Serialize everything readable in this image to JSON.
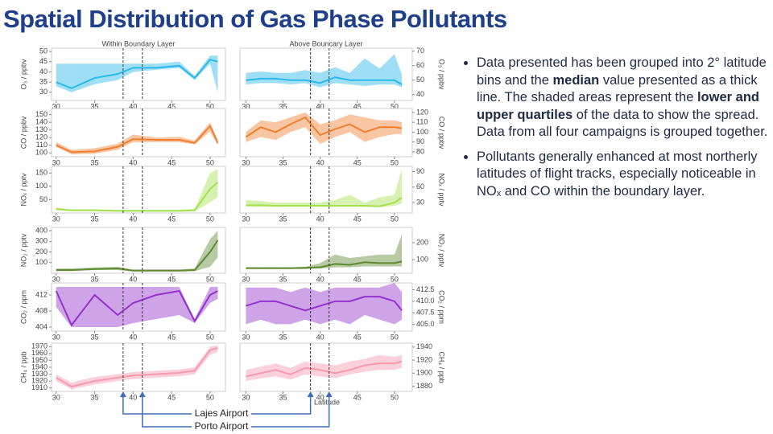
{
  "title": "Spatial Distribution of Gas Phase Pollutants",
  "bullets": [
    [
      "Data presented has been grouped into 2° latitude bins and the ",
      "median",
      " value presented as a thick line. The shaded areas represent the ",
      "lower and upper quartiles",
      " of the data to show the spread. Data from all four campaigns is grouped together."
    ],
    [
      "Pollutants generally enhanced at most northerly latitudes of flight tracks, especially noticeable in NOₓ and CO within the boundary layer."
    ]
  ],
  "column_titles": [
    "Within Boundary Layer",
    "Above Bouncary Layer"
  ],
  "x_label": "Latitude",
  "airports": [
    {
      "name": "Lajes Airport",
      "latitude": 38.7
    },
    {
      "name": "Porto Airport",
      "latitude": 41.2
    }
  ],
  "chart_data": [
    {
      "type": "band",
      "y_label": "O₃ / ppbv",
      "color": "#2bb8ea",
      "x": [
        30,
        32,
        35,
        38,
        40,
        43,
        46,
        48,
        50,
        51
      ],
      "xlim": [
        29.4,
        52
      ],
      "xticks": [
        30,
        35,
        40,
        45,
        50
      ],
      "ylim": [
        26,
        51.6
      ],
      "yticks": [
        30,
        35,
        40,
        45,
        50
      ],
      "values": [
        35,
        32,
        37,
        39,
        42,
        42,
        43,
        37,
        46,
        45
      ],
      "lower": [
        33,
        30,
        34,
        36,
        40,
        41,
        42,
        36,
        44,
        30
      ],
      "upper": [
        44,
        44,
        44,
        44,
        44,
        44,
        45,
        38,
        48,
        48
      ]
    },
    {
      "type": "band",
      "y_label": "CO / ppbv",
      "color": "#ef8032",
      "x": [
        30,
        32,
        35,
        38,
        40,
        43,
        46,
        48,
        50,
        51
      ],
      "xlim": [
        29.4,
        52
      ],
      "xticks": [
        30,
        35,
        40,
        45,
        50
      ],
      "ylim": [
        95,
        158
      ],
      "yticks": [
        100,
        110,
        120,
        130,
        140,
        150
      ],
      "values": [
        110,
        101,
        102,
        108,
        118,
        117,
        117,
        113,
        135,
        113
      ],
      "lower": [
        108,
        98,
        99,
        104,
        114,
        114,
        114,
        111,
        128,
        110
      ],
      "upper": [
        114,
        104,
        106,
        112,
        124,
        120,
        121,
        116,
        140,
        117
      ]
    },
    {
      "type": "band",
      "y_label": "NOₓ / pptv",
      "color": "#a6e04f",
      "x": [
        30,
        32,
        35,
        38,
        40,
        43,
        46,
        48,
        50,
        51
      ],
      "xlim": [
        29.4,
        52
      ],
      "xticks": [
        30,
        35,
        40,
        45,
        50
      ],
      "ylim": [
        0,
        175
      ],
      "yticks": [
        50,
        100,
        150
      ],
      "values": [
        15,
        10,
        10,
        8,
        8,
        8,
        8,
        10,
        90,
        115
      ],
      "lower": [
        10,
        7,
        7,
        5,
        5,
        5,
        5,
        6,
        40,
        60
      ],
      "upper": [
        20,
        14,
        13,
        12,
        12,
        12,
        12,
        15,
        150,
        165
      ]
    },
    {
      "type": "band",
      "y_label": "NO₂ / pptv",
      "color": "#5f8a32",
      "x": [
        30,
        32,
        35,
        38,
        40,
        43,
        46,
        48,
        50,
        51
      ],
      "xlim": [
        29.4,
        52
      ],
      "xticks": [
        30,
        35,
        40,
        45,
        50
      ],
      "ylim": [
        0,
        430
      ],
      "yticks": [
        100,
        200,
        300,
        400
      ],
      "values": [
        30,
        30,
        40,
        45,
        25,
        25,
        25,
        30,
        200,
        310
      ],
      "lower": [
        20,
        20,
        30,
        30,
        15,
        15,
        15,
        20,
        60,
        150
      ],
      "upper": [
        45,
        45,
        55,
        60,
        35,
        35,
        35,
        45,
        320,
        400
      ]
    },
    {
      "type": "band",
      "y_label": "CO₂ / ppm",
      "color": "#9433cc",
      "x": [
        30,
        32,
        35,
        38,
        40,
        43,
        46,
        48,
        50,
        51
      ],
      "xlim": [
        29.4,
        52
      ],
      "xticks": [
        30,
        35,
        40,
        45,
        50
      ],
      "ylim": [
        403,
        415
      ],
      "yticks": [
        404,
        408,
        412
      ],
      "values": [
        413,
        404.5,
        412,
        407,
        410,
        412,
        413,
        405.5,
        412,
        413
      ],
      "lower": [
        409,
        404,
        404,
        404,
        405,
        406,
        407,
        405,
        410,
        411
      ],
      "upper": [
        414,
        414,
        414,
        414,
        414,
        414,
        414,
        406,
        414,
        414
      ]
    },
    {
      "type": "band",
      "y_label": "CH₄ / ppb",
      "color": "#f59aae",
      "x": [
        30,
        32,
        35,
        38,
        40,
        43,
        46,
        48,
        50,
        51
      ],
      "xlim": [
        29.4,
        52
      ],
      "xticks": [
        30,
        35,
        40,
        45,
        50
      ],
      "ylim": [
        1905,
        1975
      ],
      "yticks": [
        1910,
        1920,
        1930,
        1940,
        1950,
        1960,
        1970
      ],
      "values": [
        1925,
        1912,
        1920,
        1925,
        1928,
        1930,
        1932,
        1935,
        1965,
        1968
      ],
      "lower": [
        1920,
        1908,
        1915,
        1920,
        1923,
        1925,
        1927,
        1930,
        1958,
        1962
      ],
      "upper": [
        1930,
        1918,
        1926,
        1930,
        1933,
        1935,
        1937,
        1940,
        1970,
        1972
      ]
    },
    {
      "type": "band",
      "y_label": "O₃ / ppbv",
      "color": "#2bb8ea",
      "x": [
        30,
        32,
        34,
        36,
        38,
        40,
        42,
        44,
        46,
        48,
        50,
        51
      ],
      "xlim": [
        29.2,
        52.4
      ],
      "xticks": [
        30,
        35,
        40,
        45,
        50
      ],
      "ylim": [
        36,
        72
      ],
      "yticks": [
        40,
        50,
        60,
        70
      ],
      "values": [
        50,
        51,
        51,
        50,
        50,
        48,
        52,
        50,
        50,
        50,
        50,
        47
      ],
      "lower": [
        47,
        48,
        48,
        47,
        48,
        45,
        48,
        47,
        46,
        47,
        47,
        45
      ],
      "upper": [
        55,
        56,
        55,
        55,
        57,
        55,
        59,
        55,
        65,
        58,
        68,
        54
      ]
    },
    {
      "type": "band",
      "y_label": "CO / ppbv",
      "color": "#ef8032",
      "x": [
        30,
        32,
        34,
        36,
        38,
        40,
        42,
        44,
        46,
        48,
        50,
        51
      ],
      "xlim": [
        29.2,
        52.4
      ],
      "xticks": [
        30,
        35,
        40,
        45,
        50
      ],
      "ylim": [
        75,
        124
      ],
      "yticks": [
        80,
        90,
        100,
        110,
        120
      ],
      "values": [
        95,
        105,
        100,
        108,
        115,
        97,
        103,
        108,
        100,
        105,
        105,
        104
      ],
      "lower": [
        90,
        95,
        92,
        100,
        105,
        88,
        95,
        100,
        90,
        95,
        98,
        98
      ],
      "upper": [
        100,
        112,
        110,
        115,
        120,
        108,
        112,
        118,
        115,
        112,
        112,
        110
      ]
    },
    {
      "type": "band",
      "y_label": "NOₓ / pptv",
      "color": "#a6e04f",
      "x": [
        30,
        32,
        34,
        36,
        38,
        40,
        42,
        44,
        46,
        48,
        50,
        51
      ],
      "xlim": [
        29.2,
        52.4
      ],
      "xticks": [
        30,
        35,
        40,
        45,
        50
      ],
      "ylim": [
        10,
        100
      ],
      "yticks": [
        30,
        60,
        90
      ],
      "values": [
        25,
        25,
        24,
        24,
        24,
        24,
        24,
        24,
        24,
        23,
        30,
        40
      ],
      "lower": [
        22,
        22,
        22,
        22,
        22,
        22,
        22,
        22,
        22,
        21,
        24,
        28
      ],
      "upper": [
        35,
        33,
        30,
        30,
        30,
        30,
        35,
        45,
        30,
        40,
        45,
        95
      ]
    },
    {
      "type": "band",
      "y_label": "NO₂ / pptv",
      "color": "#5f8a32",
      "x": [
        30,
        32,
        34,
        36,
        38,
        40,
        42,
        44,
        46,
        48,
        50,
        51
      ],
      "xlim": [
        29.2,
        52.4
      ],
      "xticks": [
        30,
        35,
        40,
        45,
        50
      ],
      "ylim": [
        20,
        290
      ],
      "yticks": [
        100,
        200
      ],
      "values": [
        50,
        50,
        50,
        50,
        52,
        55,
        75,
        70,
        85,
        80,
        80,
        90
      ],
      "lower": [
        45,
        45,
        45,
        45,
        45,
        48,
        55,
        55,
        60,
        60,
        60,
        60
      ],
      "upper": [
        55,
        55,
        55,
        55,
        58,
        80,
        130,
        110,
        120,
        130,
        130,
        250
      ]
    },
    {
      "type": "band",
      "y_label": "CO₂ / ppm",
      "color": "#9433cc",
      "x": [
        30,
        32,
        34,
        36,
        38,
        40,
        42,
        44,
        46,
        48,
        50,
        51
      ],
      "xlim": [
        29.2,
        52.4
      ],
      "xticks": [
        30,
        35,
        40,
        45,
        50
      ],
      "ylim": [
        403.5,
        414
      ],
      "yticks": [
        {
          "value": 405,
          "label": "405.0"
        },
        {
          "value": 407.5,
          "label": "407.5"
        },
        {
          "value": 410,
          "label": "410.0"
        },
        412.5
      ],
      "values": [
        409,
        410,
        410,
        409,
        408,
        409,
        410,
        410,
        411,
        411,
        410,
        408
      ],
      "lower": [
        405,
        406,
        405,
        405,
        406,
        405,
        406,
        405,
        407,
        406,
        405,
        406
      ],
      "upper": [
        413,
        413,
        413,
        412,
        413,
        412,
        413,
        413,
        413,
        413,
        414,
        412
      ]
    },
    {
      "type": "band",
      "y_label": "CH₄ / ppb",
      "color": "#f59aae",
      "x": [
        30,
        32,
        34,
        36,
        38,
        40,
        42,
        44,
        46,
        48,
        50,
        51
      ],
      "xlim": [
        29.2,
        52.4
      ],
      "xticks": [
        30,
        35,
        40,
        45,
        50
      ],
      "ylim": [
        1872,
        1946
      ],
      "yticks": [
        1880,
        1900,
        1920,
        1940
      ],
      "values": [
        1895,
        1900,
        1905,
        1898,
        1908,
        1905,
        1900,
        1905,
        1912,
        1915,
        1915,
        1918
      ],
      "lower": [
        1888,
        1892,
        1895,
        1890,
        1898,
        1895,
        1892,
        1898,
        1902,
        1905,
        1905,
        1908
      ],
      "upper": [
        1905,
        1910,
        1915,
        1908,
        1918,
        1915,
        1912,
        1918,
        1922,
        1928,
        1925,
        1928
      ]
    }
  ]
}
